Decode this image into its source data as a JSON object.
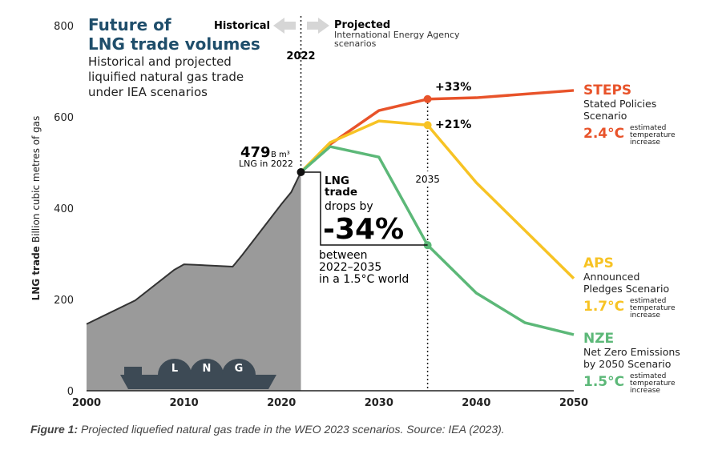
{
  "chart_data": {
    "type": "area+line",
    "title": "Future of LNG trade volumes",
    "subtitle": [
      "Historical and projected",
      "liquified natural gas trade",
      "under IEA scenarios"
    ],
    "ylabel_bold": "LNG trade",
    "ylabel": "Billion cubic metres of gas",
    "xlim": [
      2000,
      2050
    ],
    "ylim": [
      0,
      800
    ],
    "xticks": [
      2000,
      2010,
      2020,
      2030,
      2040,
      2050
    ],
    "yticks": [
      0,
      200,
      400,
      600,
      800
    ],
    "historical": {
      "x": [
        2000,
        2005,
        2009,
        2010,
        2011,
        2015,
        2016,
        2020,
        2021,
        2022
      ],
      "y": [
        146,
        198,
        265,
        277,
        276,
        272,
        298,
        409,
        435,
        479
      ]
    },
    "series": [
      {
        "name": "STEPS",
        "desc": [
          "Stated Policies",
          "Scenario"
        ],
        "temp": "2.4°C",
        "color": "#e8532a",
        "x": [
          2022,
          2025,
          2030,
          2035,
          2040,
          2050
        ],
        "y": [
          479,
          540,
          614,
          639,
          642,
          658
        ],
        "change": "+33%"
      },
      {
        "name": "APS",
        "desc": [
          "Announced",
          "Pledges Scenario"
        ],
        "temp": "1.7°C",
        "color": "#f7c324",
        "x": [
          2022,
          2025,
          2030,
          2035,
          2040,
          2050
        ],
        "y": [
          479,
          544,
          591,
          582,
          456,
          246
        ],
        "change": "+21%"
      },
      {
        "name": "NZE",
        "desc": [
          "Net Zero Emissions",
          "by 2050 Scenario"
        ],
        "temp": "1.5°C",
        "color": "#5cb878",
        "x": [
          2022,
          2025,
          2030,
          2035,
          2040,
          2045,
          2050
        ],
        "y": [
          479,
          535,
          512,
          319,
          214,
          149,
          123
        ]
      }
    ],
    "temp_note": [
      "estimated",
      "temperature",
      "increase"
    ],
    "annotations": {
      "historical": "Historical",
      "projected": "Projected",
      "projected_sub": [
        "International Energy Agency",
        "scenarios"
      ],
      "year_2022": "2022",
      "year_2035": "2035",
      "value_2022": "479",
      "unit": "B m³",
      "value_2022_label": "LNG in 2022",
      "drop_title": [
        "LNG",
        "trade"
      ],
      "drop_by": "drops by",
      "drop_value": "-34%",
      "drop_sub": [
        "between",
        "2022–2035",
        "in a 1.5°C world"
      ],
      "ship_letters": [
        "L",
        "N",
        "G"
      ]
    }
  },
  "caption": {
    "label": "Figure 1:",
    "text": " Projected liquefied natural gas trade in the WEO 2023 scenarios. Source: IEA (2023)."
  }
}
